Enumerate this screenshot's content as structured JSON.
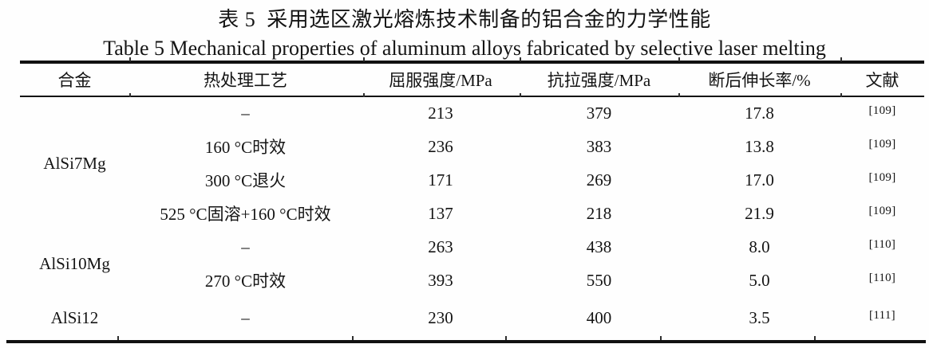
{
  "colors": {
    "text": "#141414",
    "rule": "#111111",
    "background": "#fefefe"
  },
  "titles": {
    "zh": "表 5  采用选区激光熔炼技术制备的铝合金的力学性能",
    "en": "Table 5 Mechanical properties of aluminum alloys fabricated by selective laser melting"
  },
  "table": {
    "headers": [
      "合金",
      "热处理工艺",
      "屈服强度/MPa",
      "抗拉强度/MPa",
      "断后伸长率/%",
      "文献"
    ],
    "rows": [
      {
        "alloy": "AlSi7Mg",
        "treatment": "–",
        "yield": "213",
        "tensile": "379",
        "elongation": "17.8",
        "ref": "[109]"
      },
      {
        "treatment": "160 °C时效",
        "yield": "236",
        "tensile": "383",
        "elongation": "13.8",
        "ref": "[109]"
      },
      {
        "treatment": "300 °C退火",
        "yield": "171",
        "tensile": "269",
        "elongation": "17.0",
        "ref": "[109]"
      },
      {
        "treatment": "525 °C固溶+160 °C时效",
        "yield": "137",
        "tensile": "218",
        "elongation": "21.9",
        "ref": "[109]"
      },
      {
        "alloy": "AlSi10Mg",
        "treatment": "–",
        "yield": "263",
        "tensile": "438",
        "elongation": "8.0",
        "ref": "[110]"
      },
      {
        "treatment": "270 °C时效",
        "yield": "393",
        "tensile": "550",
        "elongation": "5.0",
        "ref": "[110]"
      },
      {
        "alloy": "AlSi12",
        "treatment": "–",
        "yield": "230",
        "tensile": "400",
        "elongation": "3.5",
        "ref": "[111]"
      }
    ]
  }
}
